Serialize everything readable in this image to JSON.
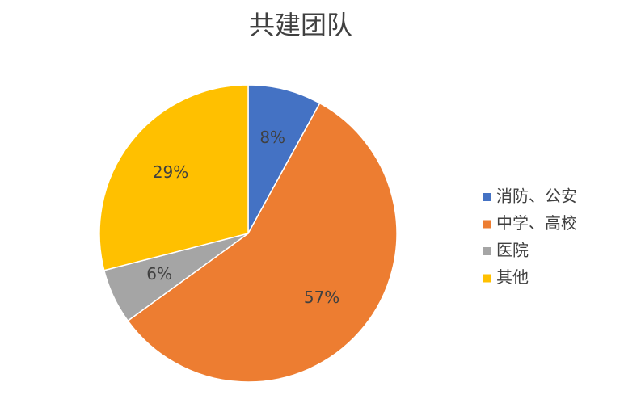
{
  "chart_data": {
    "type": "pie",
    "title": "共建团队",
    "categories": [
      "消防、公安",
      "中学、高校",
      "医院",
      "其他"
    ],
    "values": [
      8,
      57,
      6,
      29
    ],
    "value_labels": [
      "8%",
      "57%",
      "6%",
      "29%"
    ],
    "colors": [
      "#4472c4",
      "#ed7d31",
      "#a5a5a5",
      "#ffc000"
    ],
    "legend": "right"
  }
}
